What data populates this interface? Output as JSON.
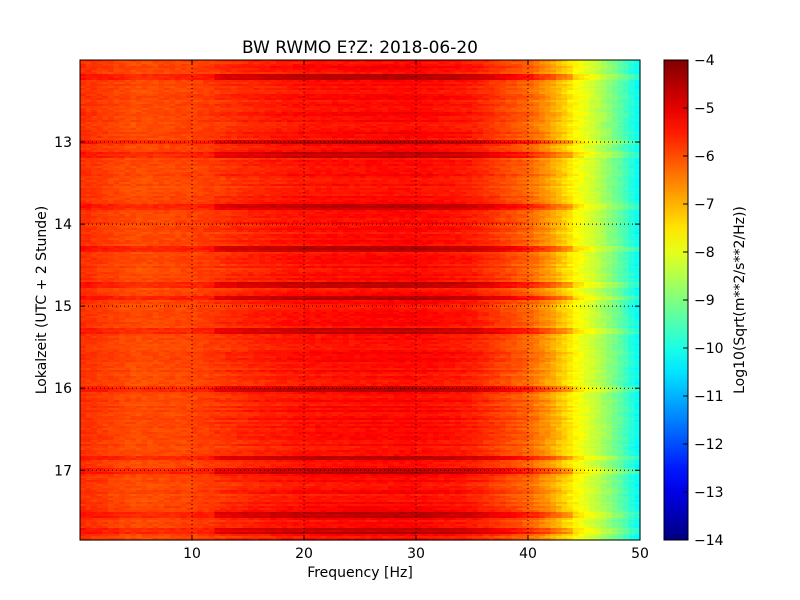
{
  "chart_data": {
    "type": "heatmap",
    "title": "BW RWMO E?Z: 2018-06-20",
    "xlabel": "Frequency [Hz]",
    "ylabel": "Lokalzeit (UTC + 2 Stunde)",
    "xlim": [
      0,
      50
    ],
    "ylim": [
      12.0,
      17.85
    ],
    "y_inverted": true,
    "x_ticks": [
      10,
      20,
      30,
      40,
      50
    ],
    "x_tick_labels": [
      "10",
      "20",
      "30",
      "40",
      "50"
    ],
    "y_ticks": [
      13,
      14,
      15,
      16,
      17
    ],
    "y_tick_labels": [
      "13",
      "14",
      "15",
      "16",
      "17"
    ],
    "grid": true,
    "grid_style": "dotted",
    "colormap": "jet",
    "colorbar": {
      "label": "Log10(Sqrt(m**2/s**2/Hz))",
      "range": [
        -14,
        -4
      ],
      "ticks": [
        -4,
        -5,
        -6,
        -7,
        -8,
        -9,
        -10,
        -11,
        -12,
        -13,
        -14
      ],
      "tick_labels": [
        "−4",
        "−5",
        "−6",
        "−7",
        "−8",
        "−9",
        "−10",
        "−11",
        "−12",
        "−13",
        "−14"
      ]
    },
    "frequency_profile": {
      "frequency_hz": [
        0,
        5,
        10,
        15,
        20,
        25,
        30,
        35,
        40,
        42,
        44,
        46,
        48,
        50
      ],
      "log10_amplitude": [
        -5.7,
        -6.0,
        -5.9,
        -5.6,
        -5.4,
        -5.35,
        -5.3,
        -5.5,
        -6.2,
        -6.8,
        -7.6,
        -8.3,
        -9.2,
        -10.3
      ]
    },
    "strong_bands_local_time": [
      12.2,
      13.0,
      13.15,
      13.8,
      14.3,
      14.75,
      14.9,
      15.3,
      16.0,
      16.85,
      17.0,
      17.55,
      17.75
    ]
  }
}
